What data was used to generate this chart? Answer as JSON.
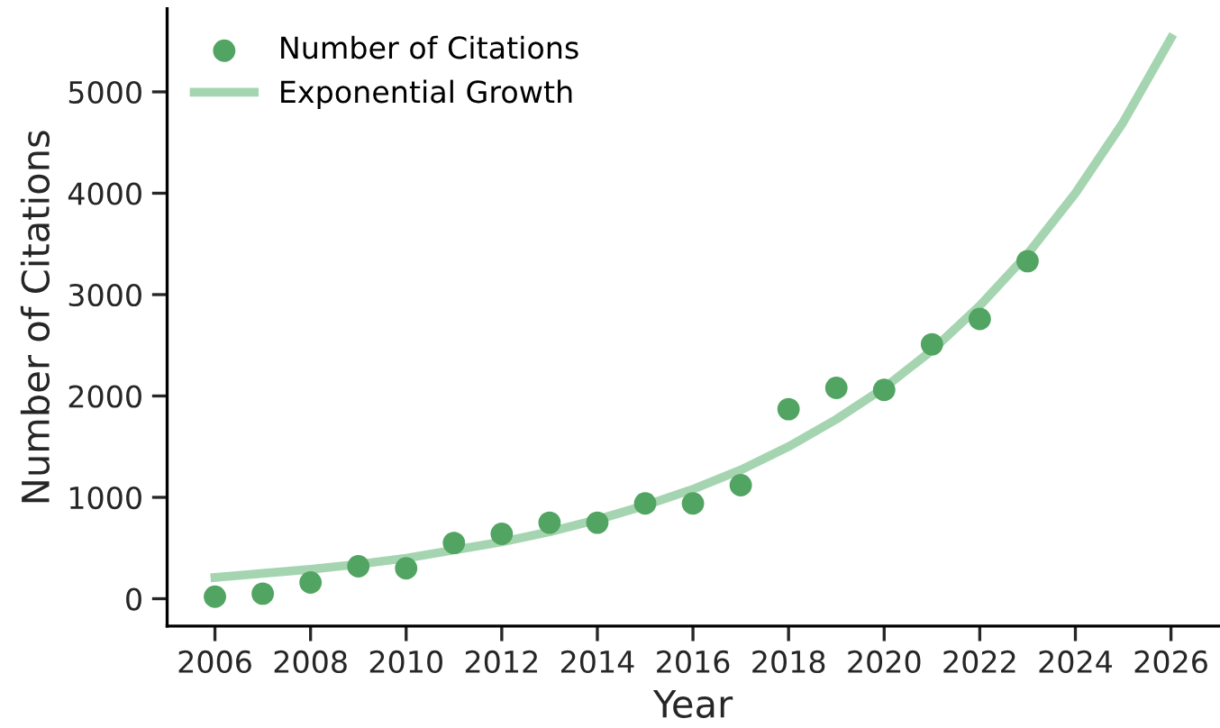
{
  "chart_data": {
    "type": "scatter",
    "xlabel": "Year",
    "ylabel": "Number of Citations",
    "xlim": [
      2005,
      2027
    ],
    "ylim": [
      -270,
      5820
    ],
    "xticks": [
      2006,
      2008,
      2010,
      2012,
      2014,
      2016,
      2018,
      2020,
      2022,
      2024,
      2026
    ],
    "yticks": [
      0,
      1000,
      2000,
      3000,
      4000,
      5000
    ],
    "grid": false,
    "legend": "top left",
    "series": [
      {
        "name": "Number of Citations",
        "marker": "circle",
        "color": "#52a463",
        "x": [
          2006,
          2007,
          2008,
          2009,
          2010,
          2011,
          2012,
          2013,
          2014,
          2015,
          2016,
          2017,
          2018,
          2019,
          2020,
          2021,
          2022,
          2023
        ],
        "values": [
          20,
          50,
          160,
          320,
          300,
          550,
          640,
          750,
          750,
          940,
          940,
          1120,
          1870,
          2080,
          2060,
          2510,
          2760,
          3330
        ]
      },
      {
        "name": "Exponential Growth",
        "type": "line",
        "marker": "none",
        "line_style": "solid",
        "color": "#a5d5b0",
        "x": [
          2006,
          2007,
          2008,
          2009,
          2010,
          2011,
          2012,
          2013,
          2014,
          2015,
          2016,
          2017,
          2018,
          2019,
          2020,
          2021,
          2022,
          2023,
          2024,
          2025,
          2026
        ],
        "values": [
          210,
          250,
          290,
          340,
          400,
          480,
          560,
          660,
          780,
          920,
          1080,
          1270,
          1500,
          1770,
          2080,
          2450,
          2890,
          3400,
          4000,
          4700,
          5530
        ]
      }
    ]
  }
}
